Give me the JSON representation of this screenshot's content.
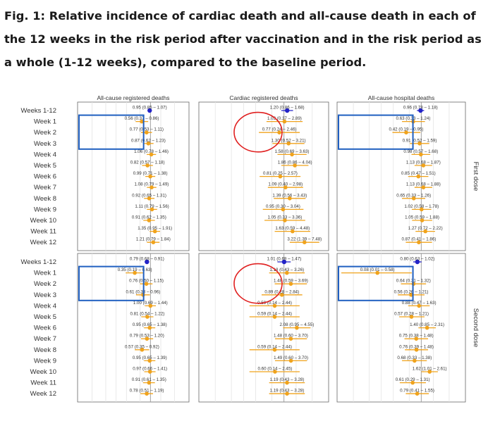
{
  "caption": "Fig. 1: Relative incidence of cardiac death and all-cause death in each of the 12 weeks in the risk period after vaccination and in the risk period as a whole (1-12 weeks), compared to the baseline period.",
  "colors": {
    "weekly": "#f0a31c",
    "overall": "#2323c8",
    "highlight_box": "#1f5fc0",
    "highlight_circle": "#e02020",
    "reference_line": "#999999",
    "grid": "#e4e4e4",
    "border": "#666666"
  },
  "chart_data": {
    "type": "forest",
    "rows": [
      "Weeks 1-12",
      "Week 1",
      "Week 2",
      "Week 3",
      "Week 4",
      "Week 5",
      "Week 6",
      "Week 7",
      "Week 8",
      "Week 9",
      "Week 10",
      "Week 11",
      "Week 12"
    ],
    "columns": [
      "All-cause registered deaths",
      "Cardiac registered deaths",
      "All-cause hospital deaths"
    ],
    "rows_panels": [
      "First dose",
      "Second dose"
    ],
    "reference_value": 1,
    "panels": [
      {
        "column": 0,
        "row": 0,
        "estimates": [
          {
            "label": "0.95 (0.85 – 1.07)",
            "est": 0.95,
            "lo": 0.85,
            "hi": 1.07
          },
          {
            "label": "0.56 (0.37 – 0.86)",
            "est": 0.56,
            "lo": 0.37,
            "hi": 0.86
          },
          {
            "label": "0.77 (0.53 – 1.11)",
            "est": 0.77,
            "lo": 0.53,
            "hi": 1.11
          },
          {
            "label": "0.87 (0.62 – 1.23)",
            "est": 0.87,
            "lo": 0.62,
            "hi": 1.23
          },
          {
            "label": "1.06 (0.78 – 1.46)",
            "est": 1.06,
            "lo": 0.78,
            "hi": 1.46
          },
          {
            "label": "0.82 (0.57 – 1.18)",
            "est": 0.82,
            "lo": 0.57,
            "hi": 1.18
          },
          {
            "label": "0.99 (0.71 – 1.38)",
            "est": 0.99,
            "lo": 0.71,
            "hi": 1.38
          },
          {
            "label": "1.08 (0.79 – 1.49)",
            "est": 1.08,
            "lo": 0.79,
            "hi": 1.49
          },
          {
            "label": "0.92 (0.65 – 1.31)",
            "est": 0.92,
            "lo": 0.65,
            "hi": 1.31
          },
          {
            "label": "1.11 (0.79 – 1.56)",
            "est": 1.11,
            "lo": 0.79,
            "hi": 1.56
          },
          {
            "label": "0.91 (0.62 – 1.35)",
            "est": 0.91,
            "lo": 0.62,
            "hi": 1.35
          },
          {
            "label": "1.35 (0.95 – 1.91)",
            "est": 1.35,
            "lo": 0.95,
            "hi": 1.91
          },
          {
            "label": "1.21 (0.79 – 1.84)",
            "est": 1.21,
            "lo": 0.79,
            "hi": 1.84
          }
        ],
        "highlight": {
          "shape": "box",
          "from_row": 1,
          "to_row": 3
        }
      },
      {
        "column": 1,
        "row": 0,
        "estimates": [
          {
            "label": "1.20 (0.86 – 1.68)",
            "est": 1.2,
            "lo": 0.86,
            "hi": 1.68
          },
          {
            "label": "1.03 (0.37 – 2.89)",
            "est": 1.03,
            "lo": 0.37,
            "hi": 2.89
          },
          {
            "label": "0.77 (0.24 – 2.46)",
            "est": 0.77,
            "lo": 0.24,
            "hi": 2.46
          },
          {
            "label": "1.30 (0.52 – 3.21)",
            "est": 1.3,
            "lo": 0.52,
            "hi": 3.21
          },
          {
            "label": "1.58 (0.69 – 3.63)",
            "est": 1.58,
            "lo": 0.69,
            "hi": 3.63
          },
          {
            "label": "1.86 (0.86 – 4.04)",
            "est": 1.86,
            "lo": 0.86,
            "hi": 4.04
          },
          {
            "label": "0.81 (0.25 – 2.57)",
            "est": 0.81,
            "lo": 0.25,
            "hi": 2.57
          },
          {
            "label": "1.09 (0.40 – 2.98)",
            "est": 1.09,
            "lo": 0.4,
            "hi": 2.98
          },
          {
            "label": "1.39 (0.56 – 3.43)",
            "est": 1.39,
            "lo": 0.56,
            "hi": 3.43
          },
          {
            "label": "0.95 (0.30 – 3.04)",
            "est": 0.95,
            "lo": 0.3,
            "hi": 3.04
          },
          {
            "label": "1.05 (0.33 – 3.36)",
            "est": 1.05,
            "lo": 0.33,
            "hi": 3.36
          },
          {
            "label": "1.63 (0.59 – 4.48)",
            "est": 1.63,
            "lo": 0.59,
            "hi": 4.48
          },
          {
            "label": "3.22 (1.39 – 7.48)",
            "est": 3.22,
            "lo": 1.39,
            "hi": 7.48
          }
        ],
        "highlight": {
          "shape": "circle",
          "from_row": 1,
          "to_row": 3
        }
      },
      {
        "column": 2,
        "row": 0,
        "estimates": [
          {
            "label": "0.96 (0.78 – 1.18)",
            "est": 0.96,
            "lo": 0.78,
            "hi": 1.18
          },
          {
            "label": "0.63 (0.33 – 1.24)",
            "est": 0.63,
            "lo": 0.33,
            "hi": 1.24
          },
          {
            "label": "0.42 (0.19 – 0.95)",
            "est": 0.42,
            "lo": 0.19,
            "hi": 0.95
          },
          {
            "label": "0.91 (0.52 – 1.59)",
            "est": 0.91,
            "lo": 0.52,
            "hi": 1.59
          },
          {
            "label": "0.98 (0.57 – 1.68)",
            "est": 0.98,
            "lo": 0.57,
            "hi": 1.68
          },
          {
            "label": "1.13 (0.68 – 1.87)",
            "est": 1.13,
            "lo": 0.68,
            "hi": 1.87
          },
          {
            "label": "0.85 (0.47 – 1.51)",
            "est": 0.85,
            "lo": 0.47,
            "hi": 1.51
          },
          {
            "label": "1.13 (0.68 – 1.88)",
            "est": 1.13,
            "lo": 0.68,
            "hi": 1.88
          },
          {
            "label": "0.65 (0.33 – 1.26)",
            "est": 0.65,
            "lo": 0.33,
            "hi": 1.26
          },
          {
            "label": "1.02 (0.58 – 1.78)",
            "est": 1.02,
            "lo": 0.58,
            "hi": 1.78
          },
          {
            "label": "1.05 (0.59 – 1.88)",
            "est": 1.05,
            "lo": 0.59,
            "hi": 1.88
          },
          {
            "label": "1.27 (0.72 – 2.22)",
            "est": 1.27,
            "lo": 0.72,
            "hi": 2.22
          },
          {
            "label": "0.87 (0.41 – 1.86)",
            "est": 0.87,
            "lo": 0.41,
            "hi": 1.86
          }
        ],
        "highlight": {
          "shape": "box",
          "from_row": 1,
          "to_row": 3
        }
      },
      {
        "column": 0,
        "row": 1,
        "estimates": [
          {
            "label": "0.79 (0.68 – 0.91)",
            "est": 0.79,
            "lo": 0.68,
            "hi": 0.91
          },
          {
            "label": "0.35 (0.19 – 0.63)",
            "est": 0.35,
            "lo": 0.19,
            "hi": 0.63
          },
          {
            "label": "0.76 (0.50 – 1.15)",
            "est": 0.76,
            "lo": 0.5,
            "hi": 1.15
          },
          {
            "label": "0.61 (0.38 – 0.96)",
            "est": 0.61,
            "lo": 0.38,
            "hi": 0.96
          },
          {
            "label": "1.00 (0.69 – 1.44)",
            "est": 1.0,
            "lo": 0.69,
            "hi": 1.44
          },
          {
            "label": "0.81 (0.54 – 1.22)",
            "est": 0.81,
            "lo": 0.54,
            "hi": 1.22
          },
          {
            "label": "0.95 (0.65 – 1.38)",
            "est": 0.95,
            "lo": 0.65,
            "hi": 1.38
          },
          {
            "label": "0.79 (0.53 – 1.20)",
            "est": 0.79,
            "lo": 0.53,
            "hi": 1.2
          },
          {
            "label": "0.57 (0.35 – 0.92)",
            "est": 0.57,
            "lo": 0.35,
            "hi": 0.92
          },
          {
            "label": "0.95 (0.65 – 1.39)",
            "est": 0.95,
            "lo": 0.65,
            "hi": 1.39
          },
          {
            "label": "0.97 (0.66 – 1.41)",
            "est": 0.97,
            "lo": 0.66,
            "hi": 1.41
          },
          {
            "label": "0.91 (0.61 – 1.35)",
            "est": 0.91,
            "lo": 0.61,
            "hi": 1.35
          },
          {
            "label": "0.78 (0.51 – 1.19)",
            "est": 0.78,
            "lo": 0.51,
            "hi": 1.19
          }
        ],
        "highlight": {
          "shape": "box",
          "from_row": 1,
          "to_row": 3
        }
      },
      {
        "column": 1,
        "row": 1,
        "estimates": [
          {
            "label": "1.01 (0.69 – 1.47)",
            "est": 1.01,
            "lo": 0.69,
            "hi": 1.47
          },
          {
            "label": "1.18 (0.43 – 3.26)",
            "est": 1.18,
            "lo": 0.43,
            "hi": 3.26
          },
          {
            "label": "1.48 (0.59 – 3.69)",
            "est": 1.48,
            "lo": 0.59,
            "hi": 3.69
          },
          {
            "label": "0.89 (0.28 – 2.84)",
            "est": 0.89,
            "lo": 0.28,
            "hi": 2.84
          },
          {
            "label": "0.59 (0.14 – 2.44)",
            "est": 0.59,
            "lo": 0.14,
            "hi": 2.44
          },
          {
            "label": "0.59 (0.14 – 2.44)",
            "est": 0.59,
            "lo": 0.14,
            "hi": 2.44
          },
          {
            "label": "2.08 (0.95 – 4.55)",
            "est": 2.08,
            "lo": 0.95,
            "hi": 4.55
          },
          {
            "label": "1.48 (0.60 – 3.70)",
            "est": 1.48,
            "lo": 0.6,
            "hi": 3.7
          },
          {
            "label": "0.59 (0.14 – 2.44)",
            "est": 0.59,
            "lo": 0.14,
            "hi": 2.44
          },
          {
            "label": "1.49 (0.60 – 3.70)",
            "est": 1.49,
            "lo": 0.6,
            "hi": 3.7
          },
          {
            "label": "0.60 (0.14 – 2.45)",
            "est": 0.6,
            "lo": 0.14,
            "hi": 2.45
          },
          {
            "label": "1.19 (0.43 – 3.28)",
            "est": 1.19,
            "lo": 0.43,
            "hi": 3.28
          },
          {
            "label": "1.19 (0.43 – 3.28)",
            "est": 1.19,
            "lo": 0.43,
            "hi": 3.28
          }
        ],
        "highlight": {
          "shape": "circle",
          "from_row": 1,
          "to_row": 3
        }
      },
      {
        "column": 2,
        "row": 1,
        "estimates": [
          {
            "label": "0.80 (0.63 – 1.02)",
            "est": 0.8,
            "lo": 0.63,
            "hi": 1.02
          },
          {
            "label": "0.08 (0.01 – 0.58)",
            "est": 0.08,
            "lo": 0.01,
            "hi": 0.58
          },
          {
            "label": "0.64 (0.31 – 1.32)",
            "est": 0.64,
            "lo": 0.31,
            "hi": 1.32
          },
          {
            "label": "0.56 (0.26 – 1.21)",
            "est": 0.56,
            "lo": 0.26,
            "hi": 1.21
          },
          {
            "label": "0.88 (0.47 – 1.63)",
            "est": 0.88,
            "lo": 0.47,
            "hi": 1.63
          },
          {
            "label": "0.57 (0.28 – 1.21)",
            "est": 0.57,
            "lo": 0.28,
            "hi": 1.21
          },
          {
            "label": "1.40 (0.85 – 2.31)",
            "est": 1.4,
            "lo": 0.85,
            "hi": 2.31
          },
          {
            "label": "0.75 (0.38 – 1.48)",
            "est": 0.75,
            "lo": 0.38,
            "hi": 1.48
          },
          {
            "label": "0.76 (0.39 – 1.48)",
            "est": 0.76,
            "lo": 0.39,
            "hi": 1.48
          },
          {
            "label": "0.68 (0.33 – 1.38)",
            "est": 0.68,
            "lo": 0.33,
            "hi": 1.38
          },
          {
            "label": "1.62 (1.01 – 2.61)",
            "est": 1.62,
            "lo": 1.01,
            "hi": 2.61
          },
          {
            "label": "0.61 (0.29 – 1.31)",
            "est": 0.61,
            "lo": 0.29,
            "hi": 1.31
          },
          {
            "label": "0.79 (0.41 – 1.55)",
            "est": 0.79,
            "lo": 0.41,
            "hi": 1.55
          }
        ],
        "highlight": {
          "shape": "box",
          "from_row": 1,
          "to_row": 3
        }
      }
    ]
  }
}
